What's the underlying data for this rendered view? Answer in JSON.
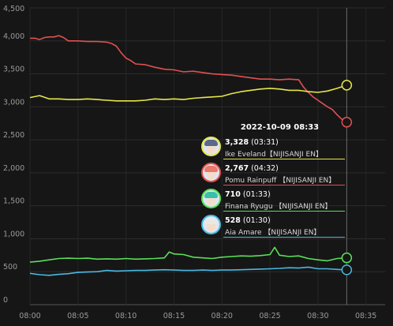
{
  "chart_data": {
    "type": "line",
    "title": "",
    "xlabel": "",
    "ylabel": "",
    "ylim": [
      0,
      4500
    ],
    "y_ticks": [
      "0",
      "500",
      "1,000",
      "1,500",
      "2,000",
      "2,500",
      "3,000",
      "3,500",
      "4,000",
      "4,500"
    ],
    "x_ticks": [
      "08:00",
      "08:05",
      "08:10",
      "08:15",
      "08:20",
      "08:25",
      "08:30",
      "08:35"
    ],
    "grid": true,
    "hover_time": "08:33",
    "tooltip": {
      "title": "2022-10-09 08:33",
      "rows": [
        {
          "value": "3,328",
          "duration": "(03:31)",
          "name": "Ike Eveland【NIJISANJI EN】",
          "color": "#e6e64a",
          "hair": "#5a6a8a"
        },
        {
          "value": "2,767",
          "duration": "(04:32)",
          "name": "Pomu Rainpuff 【NIJISANJI EN】",
          "color": "#e05050",
          "hair": "#e87a6a"
        },
        {
          "value": "710",
          "duration": "(01:33)",
          "name": "Finana Ryugu 【NIJISANJI EN】",
          "color": "#5adf5a",
          "hair": "#3ac0a8"
        },
        {
          "value": "528",
          "duration": "(01:30)",
          "name": "Aia Amare 【NIJISANJI EN】",
          "color": "#4ab8e0",
          "hair": "#e8e8e8"
        }
      ]
    },
    "series": [
      {
        "color": "#e05050",
        "points": [
          [
            0,
            4040
          ],
          [
            0.5,
            4040
          ],
          [
            1,
            4020
          ],
          [
            1.5,
            4050
          ],
          [
            2,
            4060
          ],
          [
            2.5,
            4060
          ],
          [
            3,
            4080
          ],
          [
            3.5,
            4050
          ],
          [
            4,
            4000
          ],
          [
            5,
            4000
          ],
          [
            6,
            3990
          ],
          [
            7,
            3990
          ],
          [
            8,
            3980
          ],
          [
            8.5,
            3960
          ],
          [
            9,
            3920
          ],
          [
            9.5,
            3820
          ],
          [
            10,
            3740
          ],
          [
            10.5,
            3700
          ],
          [
            11,
            3650
          ],
          [
            12,
            3640
          ],
          [
            13,
            3600
          ],
          [
            14,
            3570
          ],
          [
            15,
            3560
          ],
          [
            16,
            3530
          ],
          [
            17,
            3540
          ],
          [
            18,
            3520
          ],
          [
            19,
            3500
          ],
          [
            20,
            3490
          ],
          [
            21,
            3480
          ],
          [
            22,
            3460
          ],
          [
            23,
            3440
          ],
          [
            24,
            3420
          ],
          [
            25,
            3420
          ],
          [
            26,
            3410
          ],
          [
            27,
            3420
          ],
          [
            28,
            3410
          ],
          [
            28.5,
            3300
          ],
          [
            29,
            3220
          ],
          [
            29.5,
            3150
          ],
          [
            30,
            3100
          ],
          [
            30.5,
            3050
          ],
          [
            31,
            3000
          ],
          [
            31.5,
            2960
          ],
          [
            32,
            2880
          ],
          [
            32.5,
            2810
          ],
          [
            33,
            2767
          ]
        ]
      },
      {
        "color": "#e6e64a",
        "points": [
          [
            0,
            3140
          ],
          [
            1,
            3170
          ],
          [
            2,
            3120
          ],
          [
            3,
            3120
          ],
          [
            4,
            3110
          ],
          [
            5,
            3110
          ],
          [
            6,
            3120
          ],
          [
            7,
            3110
          ],
          [
            8,
            3100
          ],
          [
            9,
            3090
          ],
          [
            10,
            3090
          ],
          [
            11,
            3090
          ],
          [
            12,
            3100
          ],
          [
            13,
            3120
          ],
          [
            14,
            3110
          ],
          [
            15,
            3120
          ],
          [
            16,
            3110
          ],
          [
            17,
            3130
          ],
          [
            18,
            3140
          ],
          [
            19,
            3150
          ],
          [
            20,
            3160
          ],
          [
            21,
            3200
          ],
          [
            22,
            3230
          ],
          [
            23,
            3250
          ],
          [
            24,
            3270
          ],
          [
            25,
            3280
          ],
          [
            26,
            3270
          ],
          [
            27,
            3250
          ],
          [
            28,
            3250
          ],
          [
            29,
            3230
          ],
          [
            30,
            3220
          ],
          [
            31,
            3240
          ],
          [
            32,
            3280
          ],
          [
            33,
            3328
          ]
        ]
      },
      {
        "color": "#5adf5a",
        "points": [
          [
            0,
            645
          ],
          [
            1,
            660
          ],
          [
            2,
            680
          ],
          [
            3,
            700
          ],
          [
            4,
            705
          ],
          [
            5,
            700
          ],
          [
            6,
            705
          ],
          [
            7,
            690
          ],
          [
            8,
            695
          ],
          [
            9,
            690
          ],
          [
            10,
            700
          ],
          [
            11,
            690
          ],
          [
            12,
            695
          ],
          [
            13,
            700
          ],
          [
            14,
            710
          ],
          [
            14.5,
            800
          ],
          [
            15,
            770
          ],
          [
            16,
            760
          ],
          [
            17,
            720
          ],
          [
            18,
            710
          ],
          [
            19,
            700
          ],
          [
            20,
            720
          ],
          [
            21,
            730
          ],
          [
            22,
            740
          ],
          [
            23,
            735
          ],
          [
            24,
            745
          ],
          [
            25,
            760
          ],
          [
            25.5,
            870
          ],
          [
            26,
            750
          ],
          [
            27,
            730
          ],
          [
            28,
            740
          ],
          [
            29,
            700
          ],
          [
            30,
            680
          ],
          [
            31,
            665
          ],
          [
            32,
            700
          ],
          [
            33,
            710
          ]
        ]
      },
      {
        "color": "#4ab8e0",
        "points": [
          [
            0,
            475
          ],
          [
            1,
            455
          ],
          [
            2,
            445
          ],
          [
            3,
            460
          ],
          [
            4,
            470
          ],
          [
            5,
            490
          ],
          [
            6,
            495
          ],
          [
            7,
            500
          ],
          [
            8,
            520
          ],
          [
            9,
            510
          ],
          [
            10,
            515
          ],
          [
            11,
            520
          ],
          [
            12,
            520
          ],
          [
            13,
            525
          ],
          [
            14,
            530
          ],
          [
            15,
            525
          ],
          [
            16,
            520
          ],
          [
            17,
            520
          ],
          [
            18,
            525
          ],
          [
            19,
            520
          ],
          [
            20,
            525
          ],
          [
            21,
            525
          ],
          [
            22,
            530
          ],
          [
            23,
            535
          ],
          [
            24,
            540
          ],
          [
            25,
            545
          ],
          [
            26,
            550
          ],
          [
            27,
            560
          ],
          [
            28,
            555
          ],
          [
            29,
            570
          ],
          [
            30,
            545
          ],
          [
            31,
            545
          ],
          [
            32,
            535
          ],
          [
            33,
            528
          ]
        ]
      }
    ]
  }
}
